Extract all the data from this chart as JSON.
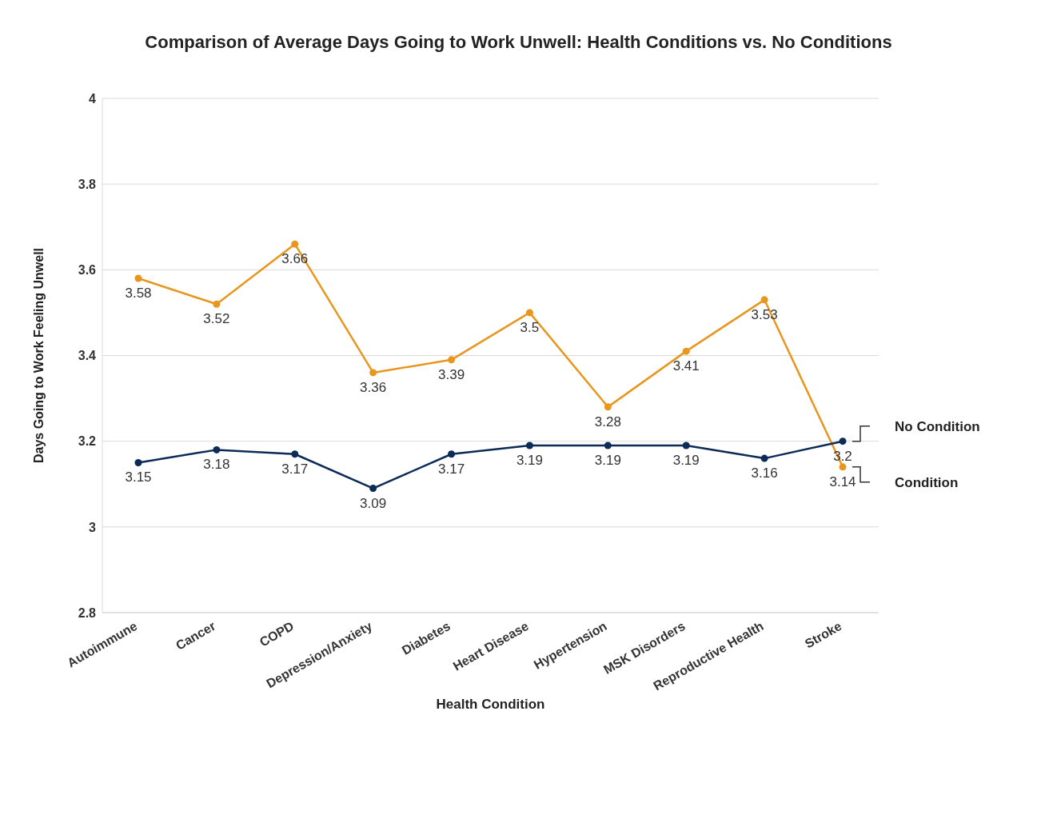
{
  "chart_data": {
    "type": "line",
    "title": "Comparison of Average Days Going to Work Unwell: Health Conditions vs. No Conditions",
    "xlabel": "Health Condition",
    "ylabel": "Days Going to Work Feeling Unwell",
    "categories": [
      "Autoimmune",
      "Cancer",
      "COPD",
      "Depression/Anxiety",
      "Diabetes",
      "Heart Disease",
      "Hypertension",
      "MSK Disorders",
      "Reproductive Health",
      "Stroke"
    ],
    "series": [
      {
        "name": "Condition",
        "color": "#e8961e",
        "values": [
          3.58,
          3.52,
          3.66,
          3.36,
          3.39,
          3.5,
          3.28,
          3.41,
          3.53,
          3.14
        ]
      },
      {
        "name": "No Condition",
        "color": "#0d2b57",
        "values": [
          3.15,
          3.18,
          3.17,
          3.09,
          3.17,
          3.19,
          3.19,
          3.19,
          3.16,
          3.2
        ]
      }
    ],
    "ylim": [
      2.8,
      4
    ],
    "yticks": [
      2.8,
      3,
      3.2,
      3.4,
      3.6,
      3.8,
      4
    ],
    "grid": "y",
    "legend": false,
    "marker": "circle",
    "line_style": "solid",
    "data_labels": true
  }
}
